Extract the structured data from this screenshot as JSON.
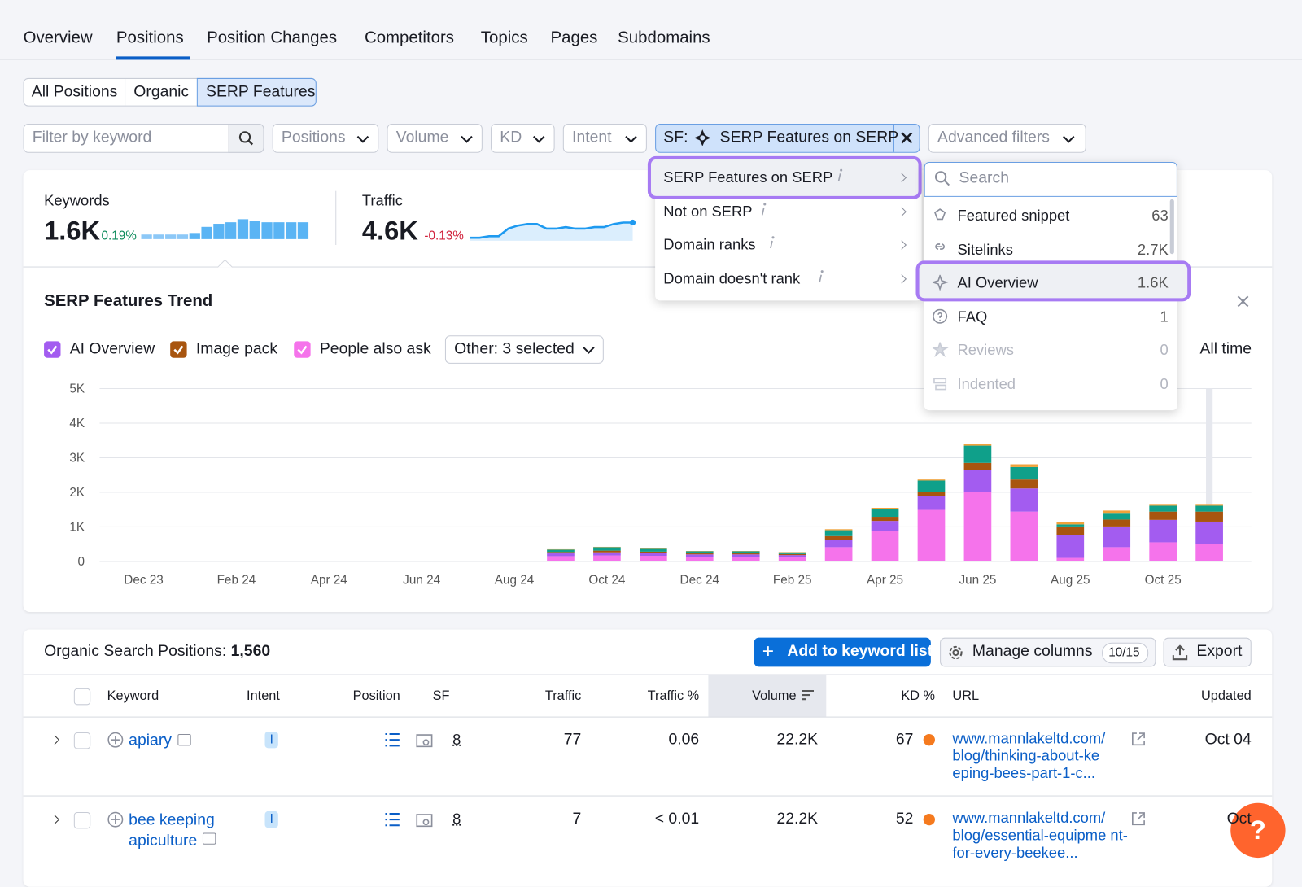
{
  "nav": {
    "tabs": [
      "Overview",
      "Positions",
      "Position Changes",
      "Competitors",
      "Topics",
      "Pages",
      "Subdomains"
    ]
  },
  "view_tabs": [
    "All Positions",
    "Organic",
    "SERP Features"
  ],
  "filters": {
    "keyword_placeholder": "Filter by keyword",
    "dropdowns": [
      "Positions",
      "Volume",
      "KD",
      "Intent"
    ],
    "sf_label": "SF:",
    "sf_value": "SERP Features on SERP",
    "advanced": "Advanced filters"
  },
  "summary": {
    "keywords": {
      "label": "Keywords",
      "value": "1.6K",
      "change": "0.19%",
      "sparkline": [
        3,
        3,
        3,
        3,
        4,
        8,
        10,
        11,
        13,
        12,
        11,
        11,
        11,
        11
      ]
    },
    "traffic": {
      "label": "Traffic",
      "value": "4.6K",
      "change": "-0.13%",
      "sparkline": [
        2,
        2,
        3,
        3,
        8,
        10,
        11,
        11,
        8,
        8,
        9,
        8,
        8,
        9,
        9,
        11,
        12,
        12
      ]
    }
  },
  "sf_menu": {
    "options": [
      "SERP Features on SERP",
      "Not on SERP",
      "Domain ranks",
      "Domain doesn't rank"
    ]
  },
  "feature_picker": {
    "search_placeholder": "Search",
    "features": [
      {
        "name": "Featured snippet",
        "count": 63
      },
      {
        "name": "Sitelinks",
        "count": "2.7K"
      },
      {
        "name": "AI Overview",
        "count": "1.6K"
      },
      {
        "name": "FAQ",
        "count": 1
      },
      {
        "name": "Reviews",
        "count": 0
      },
      {
        "name": "Indented",
        "count": 0
      }
    ]
  },
  "chart_data": {
    "type": "bar",
    "stacked": true,
    "title": "SERP Features Trend",
    "other_filter": "Other: 3 selected",
    "period": "All time",
    "categories": [
      "Dec 23",
      null,
      "Feb 24",
      null,
      "Apr 24",
      null,
      "Jun 24",
      null,
      "Aug 24",
      null,
      "Oct 24",
      null,
      "Dec 24",
      null,
      "Feb 25",
      null,
      "Apr 25",
      null,
      "Jun 25",
      null,
      "Aug 25",
      null,
      "Oct 25",
      null
    ],
    "ylim": [
      0,
      5000
    ],
    "yticks": [
      {
        "value": 0,
        "label": "0"
      },
      {
        "value": 1000,
        "label": "1K"
      },
      {
        "value": 2000,
        "label": "2K"
      },
      {
        "value": 3000,
        "label": "3K"
      },
      {
        "value": 4000,
        "label": "4K"
      },
      {
        "value": 5000,
        "label": "5K"
      }
    ],
    "grid": true,
    "series": [
      {
        "name": "AI Overview",
        "color": "#a35cf0",
        "values": [
          null,
          null,
          null,
          null,
          null,
          null,
          null,
          null,
          null,
          80,
          90,
          80,
          70,
          70,
          60,
          200,
          300,
          400,
          650,
          670,
          670,
          600,
          650,
          650
        ]
      },
      {
        "name": "Image pack",
        "color": "#a8550f",
        "values": [
          null,
          null,
          null,
          null,
          null,
          null,
          null,
          null,
          null,
          40,
          50,
          40,
          30,
          30,
          30,
          120,
          120,
          120,
          200,
          260,
          240,
          200,
          240,
          290
        ]
      },
      {
        "name": "People also ask",
        "color": "#f573eb",
        "values": [
          null,
          null,
          null,
          null,
          null,
          null,
          null,
          null,
          null,
          150,
          170,
          160,
          130,
          130,
          120,
          410,
          870,
          1490,
          2000,
          1440,
          100,
          410,
          550,
          500
        ]
      },
      {
        "color": "#0fa08a",
        "values": [
          null,
          null,
          null,
          null,
          null,
          null,
          null,
          null,
          null,
          70,
          100,
          80,
          60,
          60,
          50,
          170,
          230,
          330,
          500,
          360,
          60,
          170,
          170,
          170
        ]
      },
      {
        "color": "#f0a23a",
        "values": [
          null,
          null,
          null,
          null,
          null,
          null,
          null,
          null,
          null,
          10,
          10,
          10,
          10,
          10,
          10,
          30,
          30,
          30,
          60,
          80,
          60,
          90,
          50,
          50
        ]
      }
    ]
  },
  "table": {
    "title": "Organic Search Positions:",
    "count": "1,560",
    "add_button": "Add to keyword list",
    "manage_button": "Manage columns",
    "manage_count": "10/15",
    "export_button": "Export",
    "columns": [
      "Keyword",
      "Intent",
      "Position",
      "SF",
      "Traffic",
      "Traffic %",
      "Volume",
      "KD %",
      "URL",
      "Updated"
    ],
    "rows": [
      {
        "keyword": "apiary",
        "intent": "I",
        "sf": 8,
        "traffic": 77,
        "traffic_pct": "0.06",
        "volume": "22.2K",
        "kd": 67,
        "url": "www.mannlakeltd.com/ blog/thinking-about-ke eping-bees-part-1-c...",
        "updated": "Oct 04"
      },
      {
        "keyword": "bee keeping apiculture",
        "intent": "I",
        "sf": 8,
        "traffic": 7,
        "traffic_pct": "< 0.01",
        "volume": "22.2K",
        "kd": 52,
        "url": "www.mannlakeltd.com/ blog/essential-equipme nt-for-every-beekee...",
        "updated": "Oct"
      }
    ]
  },
  "help": "?"
}
